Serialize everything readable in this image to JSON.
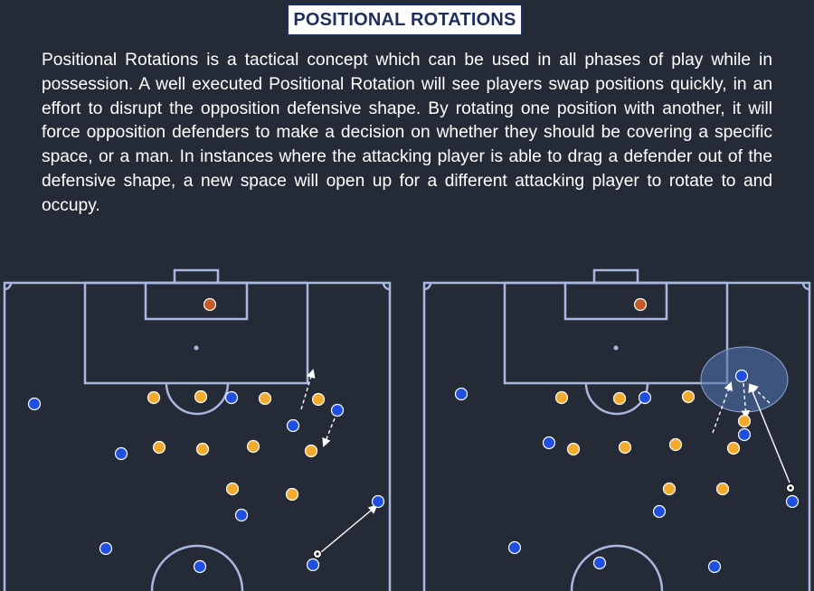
{
  "title": "POSITIONAL ROTATIONS",
  "description": "Positional Rotations is a tactical concept which can be used in all phases of play while in possession. A well executed Positional Rotation will see players swap positions quickly, in an effort to disrupt the opposition defensive shape. By rotating one position with another, it will force opposition defenders to make a decision on whether they should be covering a specific space, or a man. In instances where the attacking player is able to drag a defender out of the defensive shape, a new space will open up for a different attacking player to rotate to and occupy.",
  "colors": {
    "background": "#252b36",
    "pitch_lines": "#a9b8e0",
    "attacker": "#1f4fe0",
    "defender": "#f2ab2e",
    "goalkeeper": "#c65a28",
    "ball": "#ffffff",
    "space_highlight": "#4f6fae",
    "title_text": "#1f2f5c"
  },
  "icons": {
    "ball": "football-icon",
    "attacker": "attacker-marker-icon",
    "defender": "defender-marker-icon",
    "goalkeeper": "goalkeeper-marker-icon"
  }
}
